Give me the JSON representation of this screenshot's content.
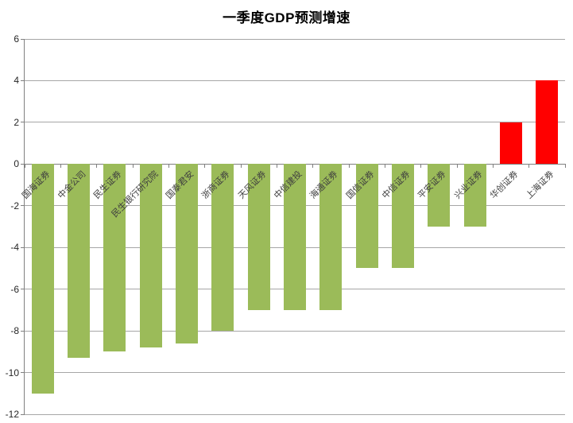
{
  "chart_data": {
    "type": "bar",
    "title": "一季度GDP预测增速",
    "categories": [
      "国海证券",
      "中金公司",
      "民生证券",
      "民生银行研究院",
      "国泰君安",
      "浙商证券",
      "天风证券",
      "中信建投",
      "海通证券",
      "国信证券",
      "中信证券",
      "平安证券",
      "兴业证券",
      "华创证券",
      "上海证券"
    ],
    "values": [
      -11,
      -9.3,
      -9,
      -8.8,
      -8.6,
      -8,
      -7,
      -7,
      -7,
      -5,
      -5,
      -3,
      -3,
      2,
      4
    ],
    "xlabel": "",
    "ylabel": "",
    "ylim": [
      -12,
      6
    ],
    "yticks": [
      6,
      4,
      2,
      0,
      -2,
      -4,
      -6,
      -8,
      -10,
      -12
    ],
    "grid": true,
    "legend_position": "none",
    "category_label_rotation_deg": 45,
    "colors": {
      "negative_bar": "#9BBB59",
      "positive_bar": "#FF0000",
      "gridline": "#A6A6A6",
      "axis": "#808080",
      "title_text": "#000000",
      "tick_label_text": "#262626",
      "category_label_text": "#3F3F3F",
      "background": "#FFFFFF"
    }
  }
}
